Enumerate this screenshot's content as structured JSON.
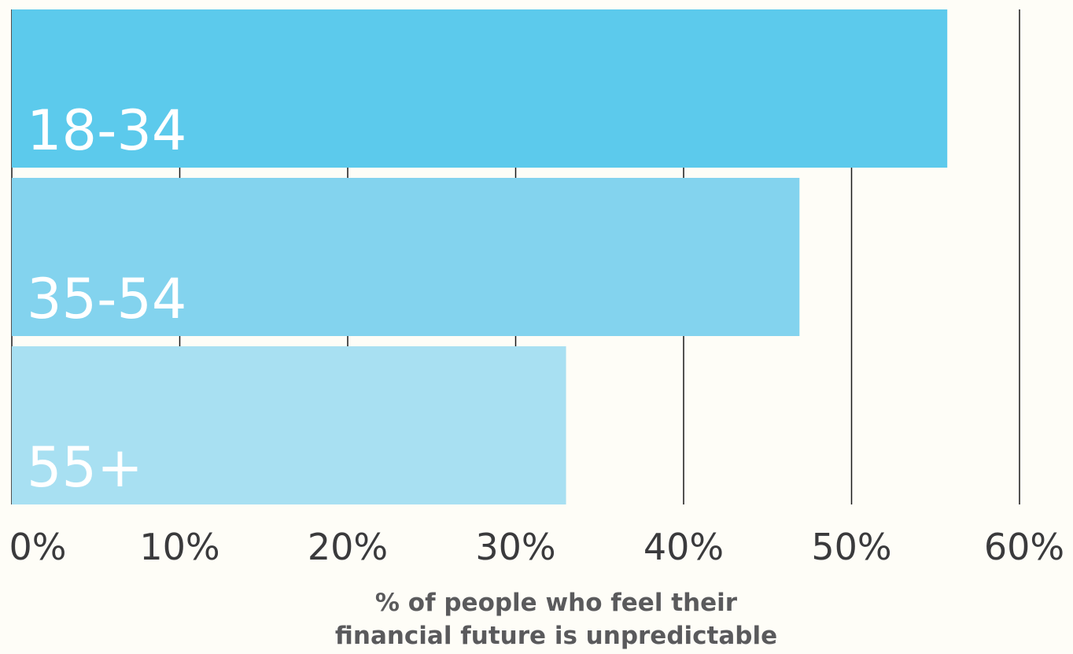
{
  "chart_data": {
    "type": "bar",
    "orientation": "horizontal",
    "categories": [
      "18-34",
      "35-54",
      "55+"
    ],
    "values": [
      55.7,
      46.9,
      33.0
    ],
    "bar_colors": [
      "#5ccaec",
      "#83d3ee",
      "#a8e0f2"
    ],
    "xlim": [
      0,
      60
    ],
    "ticks": [
      0,
      10,
      20,
      30,
      40,
      50,
      60
    ],
    "tick_labels": [
      "0%",
      "10%",
      "20%",
      "30%",
      "40%",
      "50%",
      "60%"
    ],
    "xlabel": [
      "% of people who feel their",
      "financial future is unpredictable"
    ],
    "grid": "vertical",
    "gridline_color": "#1a1a1a",
    "text_color": "#3a3a3c",
    "xlabel_color": "#5a5a5c"
  }
}
